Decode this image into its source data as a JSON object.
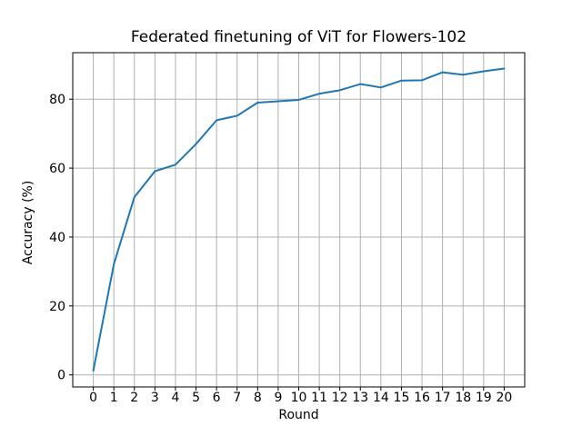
{
  "chart_data": {
    "type": "line",
    "title": "Federated finetuning of ViT for Flowers-102",
    "xlabel": "Round",
    "ylabel": "Accuracy (%)",
    "x": [
      0,
      1,
      2,
      3,
      4,
      5,
      6,
      7,
      8,
      9,
      10,
      11,
      12,
      13,
      14,
      15,
      16,
      17,
      18,
      19,
      20
    ],
    "y": [
      1.2,
      32.1,
      51.6,
      59.1,
      61.0,
      67.0,
      73.9,
      75.2,
      79.0,
      79.4,
      79.8,
      81.6,
      82.6,
      84.4,
      83.4,
      85.4,
      85.5,
      87.8,
      87.1,
      88.1,
      88.9
    ],
    "xticks": [
      0,
      1,
      2,
      3,
      4,
      5,
      6,
      7,
      8,
      9,
      10,
      11,
      12,
      13,
      14,
      15,
      16,
      17,
      18,
      19,
      20
    ],
    "yticks": [
      0,
      20,
      40,
      60,
      80
    ],
    "xlim": [
      -1,
      21
    ],
    "ylim": [
      -3.5,
      93.5
    ],
    "grid": true,
    "legend": null,
    "series_name": "accuracy",
    "line_color": "#1f77b4",
    "grid_color": "#b0b0b0",
    "spine_color": "#000000",
    "text_color": "#000000"
  }
}
